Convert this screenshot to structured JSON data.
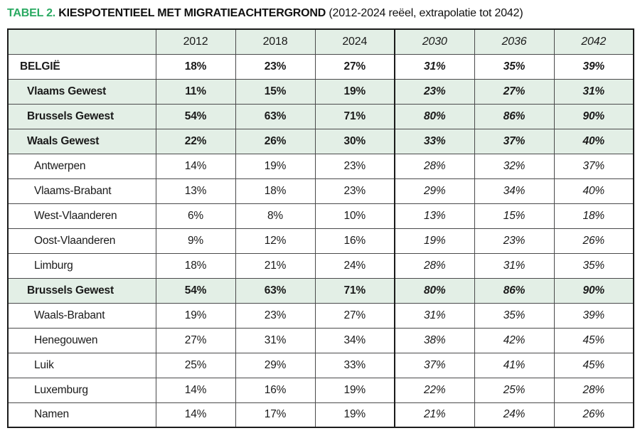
{
  "title": {
    "label": "TABEL 2.",
    "main": "KIESPOTENTIEEL MET MIGRATIEACHTERGROND",
    "subtitle": "(2012-2024 reëel, extrapolatie tot 2042)"
  },
  "colors": {
    "accent_green": "#2aaa62",
    "row_green": "#e3efe6",
    "border_inner": "#4a4a4b",
    "border_outer": "#1b1b1b"
  },
  "chart_data": {
    "type": "table",
    "title": "TABEL 2. KIESPOTENTIEEL MET MIGRATIEACHTERGROND (2012-2024 reëel, extrapolatie tot 2042)",
    "columns": [
      "2012",
      "2018",
      "2024",
      "2030",
      "2036",
      "2042"
    ],
    "real_columns": [
      "2012",
      "2018",
      "2024"
    ],
    "extrapolated_columns": [
      "2030",
      "2036",
      "2042"
    ],
    "rows": [
      {
        "label": "BELGIË",
        "style": "country",
        "values": [
          "18%",
          "23%",
          "27%",
          "31%",
          "35%",
          "39%"
        ]
      },
      {
        "label": "Vlaams Gewest",
        "style": "region",
        "values": [
          "11%",
          "15%",
          "19%",
          "23%",
          "27%",
          "31%"
        ]
      },
      {
        "label": "Brussels Gewest",
        "style": "region",
        "values": [
          "54%",
          "63%",
          "71%",
          "80%",
          "86%",
          "90%"
        ]
      },
      {
        "label": "Waals Gewest",
        "style": "region",
        "values": [
          "22%",
          "26%",
          "30%",
          "33%",
          "37%",
          "40%"
        ]
      },
      {
        "label": "Antwerpen",
        "style": "province",
        "values": [
          "14%",
          "19%",
          "23%",
          "28%",
          "32%",
          "37%"
        ]
      },
      {
        "label": "Vlaams-Brabant",
        "style": "province",
        "values": [
          "13%",
          "18%",
          "23%",
          "29%",
          "34%",
          "40%"
        ]
      },
      {
        "label": "West-Vlaanderen",
        "style": "province",
        "values": [
          "6%",
          "8%",
          "10%",
          "13%",
          "15%",
          "18%"
        ]
      },
      {
        "label": "Oost-Vlaanderen",
        "style": "province",
        "values": [
          "9%",
          "12%",
          "16%",
          "19%",
          "23%",
          "26%"
        ]
      },
      {
        "label": "Limburg",
        "style": "province",
        "values": [
          "18%",
          "21%",
          "24%",
          "28%",
          "31%",
          "35%"
        ]
      },
      {
        "label": "Brussels Gewest",
        "style": "region",
        "values": [
          "54%",
          "63%",
          "71%",
          "80%",
          "86%",
          "90%"
        ]
      },
      {
        "label": "Waals-Brabant",
        "style": "province",
        "values": [
          "19%",
          "23%",
          "27%",
          "31%",
          "35%",
          "39%"
        ]
      },
      {
        "label": "Henegouwen",
        "style": "province",
        "values": [
          "27%",
          "31%",
          "34%",
          "38%",
          "42%",
          "45%"
        ]
      },
      {
        "label": "Luik",
        "style": "province",
        "values": [
          "25%",
          "29%",
          "33%",
          "37%",
          "41%",
          "45%"
        ]
      },
      {
        "label": "Luxemburg",
        "style": "province",
        "values": [
          "14%",
          "16%",
          "19%",
          "22%",
          "25%",
          "28%"
        ]
      },
      {
        "label": "Namen",
        "style": "province",
        "values": [
          "14%",
          "17%",
          "19%",
          "21%",
          "24%",
          "26%"
        ]
      }
    ]
  }
}
